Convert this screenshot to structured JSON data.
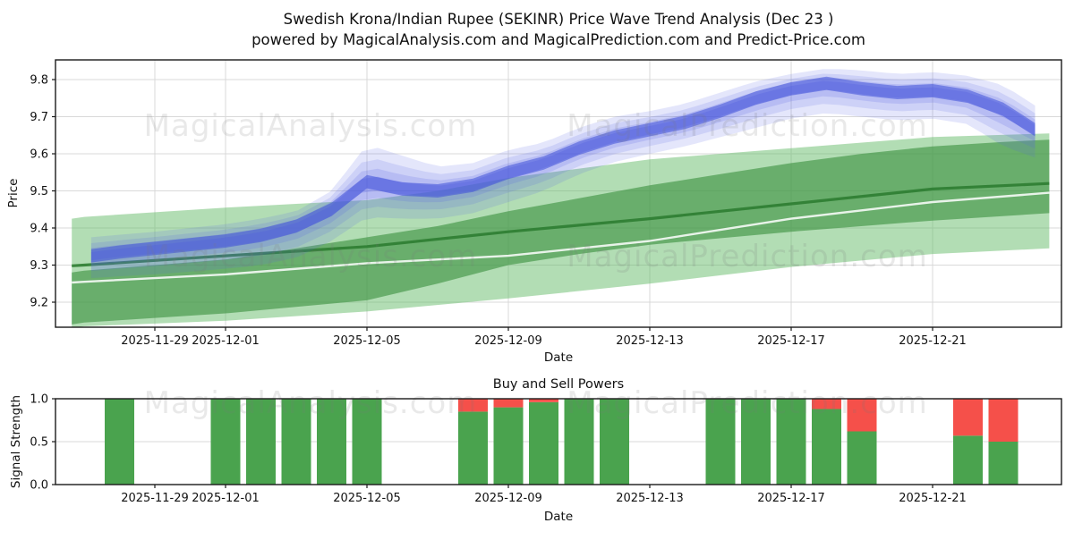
{
  "title": {
    "line1": "Swedish Krona/Indian Rupee (SEKINR) Price Wave Trend Analysis (Dec 23 )",
    "line2": "powered by MagicalAnalysis.com and MagicalPrediction.com and Predict-Price.com"
  },
  "watermarks": [
    "MagicalAnalysis.com",
    "MagicalPrediction.com"
  ],
  "colors": {
    "green_band_light": "#66bb6a",
    "green_band_dark": "#3c9140",
    "green_trend_line": "#2e7d32",
    "price_line": "#ffffff",
    "blue_band": "#5866e6",
    "blue_core": "#3f50d8",
    "buy_green": "#4aa34e",
    "sell_red": "#f5504a",
    "grid": "#d9d9d9",
    "spine": "#1a1a1a"
  },
  "chart_data": [
    {
      "type": "area",
      "name": "price-wave-trend",
      "ylabel": "Price",
      "xlabel": "Date",
      "ylim": [
        9.13,
        9.85
      ],
      "yticks": [
        9.2,
        9.3,
        9.4,
        9.5,
        9.6,
        9.7,
        9.8
      ],
      "xticks": [
        {
          "label": "2025-11-29",
          "day": 2
        },
        {
          "label": "2025-12-01",
          "day": 4
        },
        {
          "label": "2025-12-05",
          "day": 8
        },
        {
          "label": "2025-12-09",
          "day": 12
        },
        {
          "label": "2025-12-13",
          "day": 16
        },
        {
          "label": "2025-12-17",
          "day": 20
        },
        {
          "label": "2025-12-21",
          "day": 24
        }
      ],
      "day0_date": "2025-11-27",
      "grid": true,
      "legend": false,
      "series": {
        "green_band_outer": {
          "upper": [
            [
              -0.35,
              9.425
            ],
            [
              0,
              9.43
            ],
            [
              4,
              9.455
            ],
            [
              6,
              9.465
            ],
            [
              8,
              9.475
            ],
            [
              10,
              9.5
            ],
            [
              12,
              9.535
            ],
            [
              14,
              9.56
            ],
            [
              16,
              9.585
            ],
            [
              18,
              9.6
            ],
            [
              20,
              9.615
            ],
            [
              22,
              9.63
            ],
            [
              24,
              9.645
            ],
            [
              27.3,
              9.655
            ]
          ],
          "lower": [
            [
              -0.35,
              9.13
            ],
            [
              0,
              9.135
            ],
            [
              4,
              9.15
            ],
            [
              8,
              9.175
            ],
            [
              12,
              9.21
            ],
            [
              16,
              9.25
            ],
            [
              20,
              9.295
            ],
            [
              24,
              9.33
            ],
            [
              27.3,
              9.345
            ]
          ]
        },
        "green_band_inner": {
          "upper": [
            [
              -0.35,
              9.28
            ],
            [
              0,
              9.285
            ],
            [
              2,
              9.3
            ],
            [
              4,
              9.315
            ],
            [
              6,
              9.345
            ],
            [
              8,
              9.375
            ],
            [
              10,
              9.405
            ],
            [
              12,
              9.445
            ],
            [
              14,
              9.48
            ],
            [
              16,
              9.515
            ],
            [
              18,
              9.545
            ],
            [
              20,
              9.575
            ],
            [
              22,
              9.6
            ],
            [
              24,
              9.62
            ],
            [
              26,
              9.632
            ],
            [
              27.3,
              9.638
            ]
          ],
          "lower": [
            [
              -0.35,
              9.14
            ],
            [
              0,
              9.145
            ],
            [
              4,
              9.17
            ],
            [
              8,
              9.205
            ],
            [
              10,
              9.25
            ],
            [
              12,
              9.3
            ],
            [
              14,
              9.33
            ],
            [
              16,
              9.355
            ],
            [
              20,
              9.39
            ],
            [
              24,
              9.42
            ],
            [
              27.3,
              9.44
            ]
          ]
        },
        "green_trend_line": [
          [
            -0.35,
            9.298
          ],
          [
            0,
            9.3
          ],
          [
            4,
            9.325
          ],
          [
            8,
            9.35
          ],
          [
            12,
            9.39
          ],
          [
            16,
            9.425
          ],
          [
            20,
            9.465
          ],
          [
            24,
            9.505
          ],
          [
            27.3,
            9.52
          ]
        ],
        "price_line": [
          [
            -0.35,
            9.253
          ],
          [
            0,
            9.255
          ],
          [
            4,
            9.275
          ],
          [
            8,
            9.305
          ],
          [
            12,
            9.325
          ],
          [
            16,
            9.365
          ],
          [
            20,
            9.425
          ],
          [
            24,
            9.47
          ],
          [
            27.3,
            9.495
          ]
        ],
        "blue_wave": {
          "core": [
            [
              0.2,
              9.325
            ],
            [
              1,
              9.335
            ],
            [
              2,
              9.345
            ],
            [
              3,
              9.355
            ],
            [
              4,
              9.365
            ],
            [
              5,
              9.38
            ],
            [
              6,
              9.405
            ],
            [
              7,
              9.45
            ],
            [
              8,
              9.525
            ],
            [
              9,
              9.505
            ],
            [
              10,
              9.5
            ],
            [
              11,
              9.515
            ],
            [
              12,
              9.55
            ],
            [
              13,
              9.575
            ],
            [
              14,
              9.615
            ],
            [
              15,
              9.645
            ],
            [
              16,
              9.665
            ],
            [
              17,
              9.685
            ],
            [
              18,
              9.715
            ],
            [
              19,
              9.75
            ],
            [
              20,
              9.775
            ],
            [
              21,
              9.79
            ],
            [
              22,
              9.775
            ],
            [
              23,
              9.765
            ],
            [
              24,
              9.77
            ],
            [
              25,
              9.755
            ],
            [
              26,
              9.72
            ],
            [
              26.9,
              9.665
            ]
          ],
          "upper": [
            [
              0.2,
              9.375
            ],
            [
              2,
              9.39
            ],
            [
              4,
              9.41
            ],
            [
              5,
              9.425
            ],
            [
              6,
              9.445
            ],
            [
              7,
              9.5
            ],
            [
              8,
              9.625
            ],
            [
              9,
              9.595
            ],
            [
              10,
              9.565
            ],
            [
              11,
              9.575
            ],
            [
              12,
              9.61
            ],
            [
              13,
              9.63
            ],
            [
              14,
              9.67
            ],
            [
              15,
              9.7
            ],
            [
              16,
              9.715
            ],
            [
              17,
              9.735
            ],
            [
              18,
              9.765
            ],
            [
              19,
              9.795
            ],
            [
              20,
              9.815
            ],
            [
              21,
              9.83
            ],
            [
              22,
              9.825
            ],
            [
              23,
              9.815
            ],
            [
              24,
              9.82
            ],
            [
              25,
              9.81
            ],
            [
              26,
              9.785
            ],
            [
              26.9,
              9.73
            ]
          ],
          "lower": [
            [
              0.2,
              9.265
            ],
            [
              2,
              9.275
            ],
            [
              4,
              9.29
            ],
            [
              5,
              9.3
            ],
            [
              6,
              9.32
            ],
            [
              7,
              9.365
            ],
            [
              8,
              9.43
            ],
            [
              9,
              9.425
            ],
            [
              10,
              9.425
            ],
            [
              11,
              9.44
            ],
            [
              12,
              9.47
            ],
            [
              13,
              9.5
            ],
            [
              14,
              9.545
            ],
            [
              15,
              9.578
            ],
            [
              16,
              9.6
            ],
            [
              17,
              9.62
            ],
            [
              18,
              9.645
            ],
            [
              19,
              9.67
            ],
            [
              20,
              9.695
            ],
            [
              21,
              9.71
            ],
            [
              22,
              9.7
            ],
            [
              23,
              9.69
            ],
            [
              24,
              9.695
            ],
            [
              25,
              9.68
            ],
            [
              26,
              9.62
            ],
            [
              26.9,
              9.59
            ]
          ],
          "layers": [
            [
              1.0,
              0.16
            ],
            [
              0.68,
              0.16
            ],
            [
              0.42,
              0.19
            ],
            [
              0.2,
              0.26
            ]
          ],
          "core_halfwidth": 0.018,
          "core_alpha": 0.55
        }
      }
    },
    {
      "type": "bar",
      "name": "buy-sell-powers",
      "title": "Buy and Sell Powers",
      "ylabel": "Signal Strength",
      "xlabel": "Date",
      "ylim": [
        0.0,
        1.05
      ],
      "yticks": [
        0.0,
        0.5,
        1.0
      ],
      "xticks": [
        {
          "label": "2025-11-29",
          "day": 2
        },
        {
          "label": "2025-12-01",
          "day": 4
        },
        {
          "label": "2025-12-05",
          "day": 8
        },
        {
          "label": "2025-12-09",
          "day": 12
        },
        {
          "label": "2025-12-13",
          "day": 16
        },
        {
          "label": "2025-12-17",
          "day": 20
        },
        {
          "label": "2025-12-21",
          "day": 24
        }
      ],
      "bars": [
        {
          "date": "2025-11-28",
          "day": 1,
          "buy": 1.0,
          "sell": 0.0
        },
        {
          "date": "2025-12-01",
          "day": 4,
          "buy": 1.0,
          "sell": 0.0
        },
        {
          "date": "2025-12-02",
          "day": 5,
          "buy": 1.0,
          "sell": 0.0
        },
        {
          "date": "2025-12-03",
          "day": 6,
          "buy": 1.0,
          "sell": 0.0
        },
        {
          "date": "2025-12-04",
          "day": 7,
          "buy": 1.0,
          "sell": 0.0
        },
        {
          "date": "2025-12-05",
          "day": 8,
          "buy": 1.0,
          "sell": 0.0
        },
        {
          "date": "2025-12-08",
          "day": 11,
          "buy": 0.85,
          "sell": 0.15
        },
        {
          "date": "2025-12-09",
          "day": 12,
          "buy": 0.9,
          "sell": 0.1
        },
        {
          "date": "2025-12-10",
          "day": 13,
          "buy": 0.96,
          "sell": 0.04
        },
        {
          "date": "2025-12-11",
          "day": 14,
          "buy": 1.0,
          "sell": 0.0
        },
        {
          "date": "2025-12-12",
          "day": 15,
          "buy": 1.0,
          "sell": 0.0
        },
        {
          "date": "2025-12-15",
          "day": 18,
          "buy": 1.0,
          "sell": 0.0
        },
        {
          "date": "2025-12-16",
          "day": 19,
          "buy": 1.0,
          "sell": 0.0
        },
        {
          "date": "2025-12-17",
          "day": 20,
          "buy": 1.0,
          "sell": 0.0
        },
        {
          "date": "2025-12-18",
          "day": 21,
          "buy": 0.88,
          "sell": 0.12
        },
        {
          "date": "2025-12-19",
          "day": 22,
          "buy": 0.62,
          "sell": 0.38
        },
        {
          "date": "2025-12-22",
          "day": 25,
          "buy": 0.57,
          "sell": 0.43
        },
        {
          "date": "2025-12-23",
          "day": 26,
          "buy": 0.5,
          "sell": 0.5
        }
      ]
    }
  ]
}
